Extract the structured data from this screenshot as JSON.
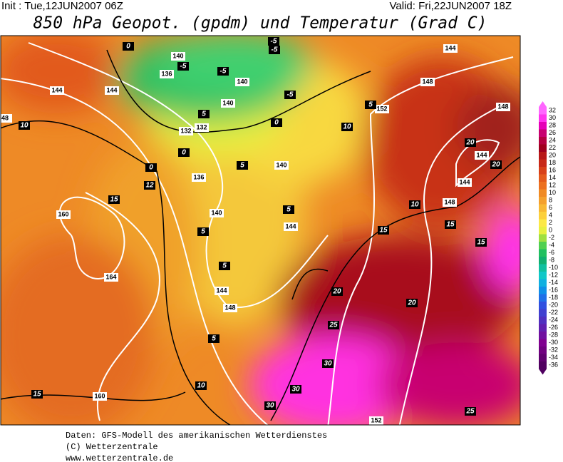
{
  "header": {
    "init": "Init : Tue,12JUN2007 06Z",
    "valid": "Valid: Fri,22JUN2007 18Z",
    "title": "850 hPa Geopot. (gpdm) und Temperatur (Grad C)"
  },
  "map": {
    "geopotential_labels": [
      144,
      144,
      140,
      136,
      140,
      140,
      132,
      132,
      136,
      140,
      140,
      144,
      144,
      148,
      160,
      164,
      160,
      152,
      148,
      152,
      144,
      148,
      144,
      144,
      148,
      48
    ],
    "temperature_labels": [
      10,
      10,
      10,
      10,
      15,
      15,
      15,
      15,
      15,
      20,
      20,
      20,
      20,
      25,
      30,
      30,
      30,
      25,
      5,
      5,
      5,
      5,
      5,
      5,
      5,
      0,
      0,
      0,
      -5,
      -5,
      -5,
      -5,
      -5,
      0,
      12
    ]
  },
  "colorbar": {
    "values": [
      32,
      30,
      28,
      26,
      24,
      22,
      20,
      18,
      16,
      14,
      12,
      10,
      8,
      6,
      4,
      2,
      0,
      -2,
      -4,
      -6,
      -8,
      -10,
      -12,
      -14,
      -16,
      -18,
      -20,
      -22,
      -24,
      -26,
      -28,
      -30,
      -32,
      -34,
      -36
    ],
    "colors": [
      "#ff66ff",
      "#ff33ee",
      "#e600b8",
      "#c80070",
      "#b40040",
      "#a0001e",
      "#b81818",
      "#c82818",
      "#d84018",
      "#e45a1c",
      "#ec7020",
      "#f08a24",
      "#f4a02c",
      "#f8b834",
      "#fcd03c",
      "#fce846",
      "#e8f040",
      "#a0e040",
      "#50d050",
      "#20c060",
      "#10b070",
      "#10c0a0",
      "#10c8c8",
      "#10b0e0",
      "#1090e8",
      "#2070e8",
      "#3050e0",
      "#4040d0",
      "#5030c0",
      "#6020b0",
      "#7010a0",
      "#800090",
      "#700080",
      "#600070",
      "#500060"
    ]
  },
  "footer": {
    "line1": "Daten: GFS-Modell des amerikanischen Wetterdienstes",
    "line2": "(C) Wetterzentrale",
    "line3": "www.wetterzentrale.de"
  }
}
